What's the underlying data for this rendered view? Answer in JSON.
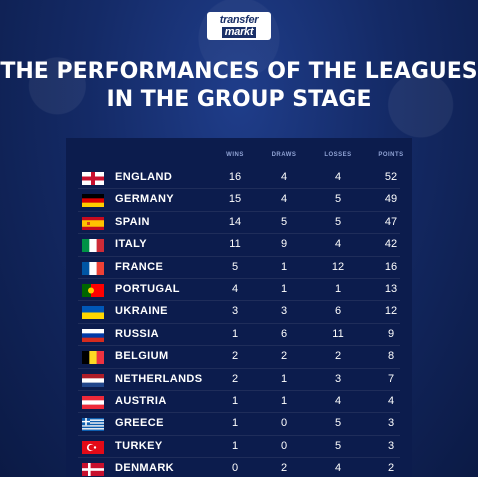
{
  "brand": {
    "line1": "transfer",
    "line2": "markt"
  },
  "title_line1": "THE PERFORMANCES OF THE LEAGUES",
  "title_line2": "IN THE GROUP STAGE",
  "columns": {
    "wins": "WINS",
    "draws": "DRAWS",
    "losses": "LOSSES",
    "points": "POINTS"
  },
  "rows": [
    {
      "country": "ENGLAND",
      "flag": "england-flag-icon",
      "wins": "16",
      "draws": "4",
      "losses": "4",
      "points": "52"
    },
    {
      "country": "GERMANY",
      "flag": "germany-flag-icon",
      "wins": "15",
      "draws": "4",
      "losses": "5",
      "points": "49"
    },
    {
      "country": "SPAIN",
      "flag": "spain-flag-icon",
      "wins": "14",
      "draws": "5",
      "losses": "5",
      "points": "47"
    },
    {
      "country": "ITALY",
      "flag": "italy-flag-icon",
      "wins": "11",
      "draws": "9",
      "losses": "4",
      "points": "42"
    },
    {
      "country": "FRANCE",
      "flag": "france-flag-icon",
      "wins": "5",
      "draws": "1",
      "losses": "12",
      "points": "16"
    },
    {
      "country": "PORTUGAL",
      "flag": "portugal-flag-icon",
      "wins": "4",
      "draws": "1",
      "losses": "1",
      "points": "13"
    },
    {
      "country": "UKRAINE",
      "flag": "ukraine-flag-icon",
      "wins": "3",
      "draws": "3",
      "losses": "6",
      "points": "12"
    },
    {
      "country": "RUSSIA",
      "flag": "russia-flag-icon",
      "wins": "1",
      "draws": "6",
      "losses": "11",
      "points": "9"
    },
    {
      "country": "BELGIUM",
      "flag": "belgium-flag-icon",
      "wins": "2",
      "draws": "2",
      "losses": "2",
      "points": "8"
    },
    {
      "country": "NETHERLANDS",
      "flag": "netherlands-flag-icon",
      "wins": "2",
      "draws": "1",
      "losses": "3",
      "points": "7"
    },
    {
      "country": "AUSTRIA",
      "flag": "austria-flag-icon",
      "wins": "1",
      "draws": "1",
      "losses": "4",
      "points": "4"
    },
    {
      "country": "GREECE",
      "flag": "greece-flag-icon",
      "wins": "1",
      "draws": "0",
      "losses": "5",
      "points": "3"
    },
    {
      "country": "TURKEY",
      "flag": "turkey-flag-icon",
      "wins": "1",
      "draws": "0",
      "losses": "5",
      "points": "3"
    },
    {
      "country": "DENMARK",
      "flag": "denmark-flag-icon",
      "wins": "0",
      "draws": "2",
      "losses": "4",
      "points": "2"
    }
  ]
}
